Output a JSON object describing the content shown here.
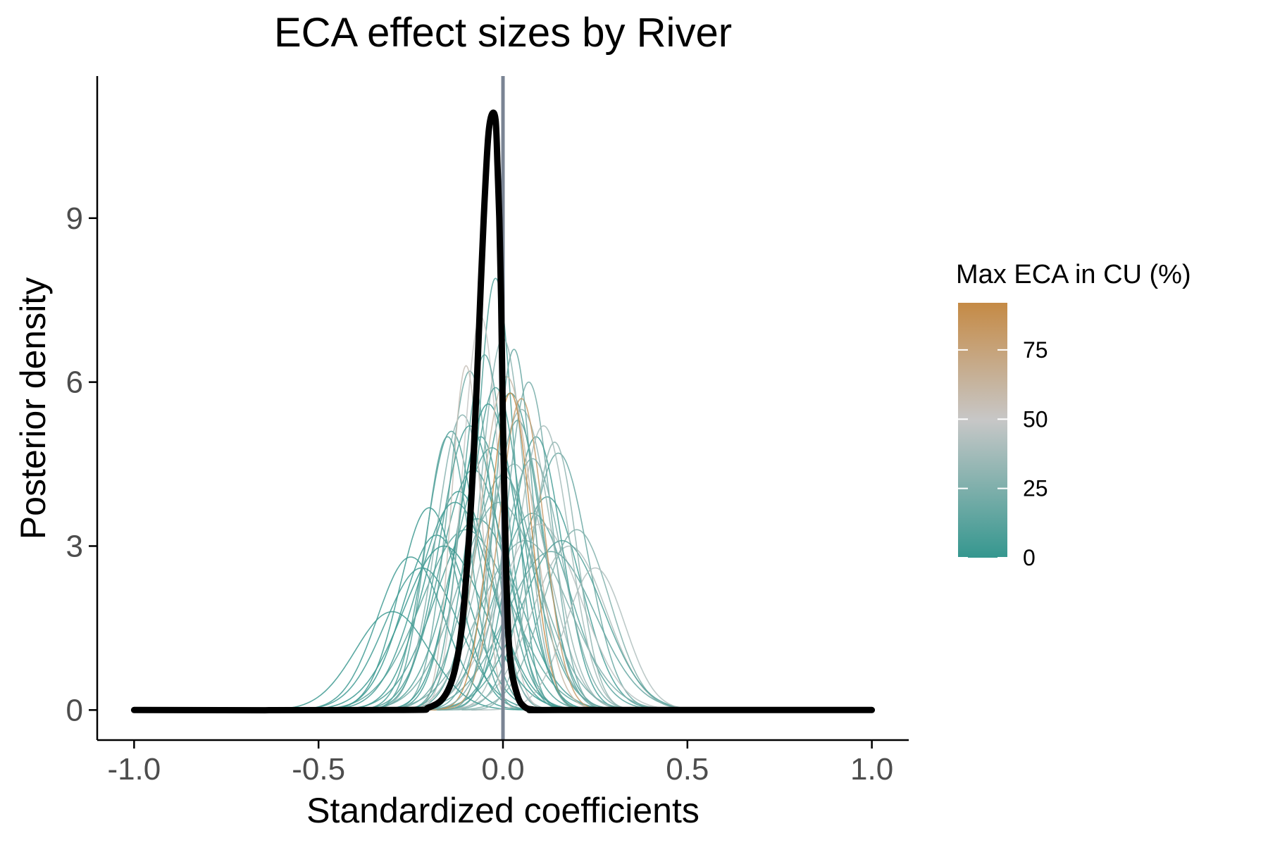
{
  "chart_data": {
    "type": "line",
    "title": "ECA effect sizes by River",
    "xlabel": "Standardized coefficients",
    "ylabel": "Posterior density",
    "xlim": [
      -1.1,
      1.1
    ],
    "ylim": [
      -0.55,
      11.6
    ],
    "x_ticks": [
      -1.0,
      -0.5,
      0.0,
      0.5,
      1.0
    ],
    "x_tick_labels": [
      "-1.0",
      "-0.5",
      "0.0",
      "0.5",
      "1.0"
    ],
    "y_ticks": [
      0,
      3,
      6,
      9
    ],
    "y_tick_labels": [
      "0",
      "3",
      "6",
      "9"
    ],
    "grid": false,
    "reference_line": {
      "x": 0,
      "color": "#7a8494"
    },
    "legend": {
      "title": "Max ECA in CU (%)",
      "placement": "right",
      "type": "colorbar",
      "range": [
        0,
        92
      ],
      "ticks": [
        0,
        25,
        50,
        75
      ],
      "tick_labels": [
        "0",
        "25",
        "50",
        "75"
      ],
      "colors": [
        "#35978f",
        "#c7c7c7",
        "#c58a45"
      ]
    },
    "overall_series": {
      "name": "Overall",
      "color": "#000000",
      "x": [
        -1.0,
        -0.3,
        -0.2,
        -0.15,
        -0.12,
        -0.1,
        -0.08,
        -0.06,
        -0.05,
        -0.04,
        -0.03,
        -0.02,
        -0.015,
        -0.01,
        -0.005,
        0.0,
        0.01,
        0.02,
        0.04,
        0.06,
        0.08,
        0.1,
        0.15,
        1.0
      ],
      "y": [
        0,
        0,
        0.05,
        0.35,
        1.1,
        2.4,
        4.6,
        7.8,
        9.3,
        10.5,
        10.9,
        10.8,
        10.0,
        9.0,
        7.5,
        5.2,
        2.2,
        0.9,
        0.25,
        0.05,
        0.01,
        0,
        0,
        0
      ]
    },
    "river_series": [
      {
        "max_eca": 5,
        "mean": -0.06,
        "sd": 0.07,
        "peak": 5.0
      },
      {
        "max_eca": 8,
        "mean": 0.02,
        "sd": 0.08,
        "peak": 5.8
      },
      {
        "max_eca": 3,
        "mean": -0.12,
        "sd": 0.09,
        "peak": 4.0
      },
      {
        "max_eca": 12,
        "mean": 0.08,
        "sd": 0.1,
        "peak": 3.6
      },
      {
        "max_eca": 2,
        "mean": -0.18,
        "sd": 0.09,
        "peak": 3.2
      },
      {
        "max_eca": 15,
        "mean": 0.04,
        "sd": 0.07,
        "peak": 5.3
      },
      {
        "max_eca": 20,
        "mean": -0.09,
        "sd": 0.06,
        "peak": 6.2
      },
      {
        "max_eca": 6,
        "mean": 0.12,
        "sd": 0.09,
        "peak": 3.9
      },
      {
        "max_eca": 10,
        "mean": -0.02,
        "sd": 0.05,
        "peak": 7.9
      },
      {
        "max_eca": 25,
        "mean": 0.06,
        "sd": 0.12,
        "peak": 3.1
      },
      {
        "max_eca": 4,
        "mean": -0.22,
        "sd": 0.1,
        "peak": 2.6
      },
      {
        "max_eca": 30,
        "mean": 0.0,
        "sd": 0.06,
        "peak": 6.8
      },
      {
        "max_eca": 7,
        "mean": -0.07,
        "sd": 0.11,
        "peak": 3.5
      },
      {
        "max_eca": 18,
        "mean": 0.15,
        "sd": 0.08,
        "peak": 4.7
      },
      {
        "max_eca": 9,
        "mean": -0.14,
        "sd": 0.07,
        "peak": 5.1
      },
      {
        "max_eca": 35,
        "mean": 0.03,
        "sd": 0.09,
        "peak": 4.5
      },
      {
        "max_eca": 1,
        "mean": -0.04,
        "sd": 0.08,
        "peak": 5.6
      },
      {
        "max_eca": 45,
        "mean": 0.1,
        "sd": 0.11,
        "peak": 3.4
      },
      {
        "max_eca": 13,
        "mean": -0.1,
        "sd": 0.12,
        "peak": 3.3
      },
      {
        "max_eca": 22,
        "mean": 0.07,
        "sd": 0.06,
        "peak": 6.0
      },
      {
        "max_eca": 3,
        "mean": -0.2,
        "sd": 0.08,
        "peak": 3.7
      },
      {
        "max_eca": 40,
        "mean": 0.18,
        "sd": 0.1,
        "peak": 3.0
      },
      {
        "max_eca": 11,
        "mean": -0.03,
        "sd": 0.1,
        "peak": 4.8
      },
      {
        "max_eca": 28,
        "mean": -0.11,
        "sd": 0.07,
        "peak": 5.4
      },
      {
        "max_eca": 6,
        "mean": 0.09,
        "sd": 0.07,
        "peak": 5.0
      },
      {
        "max_eca": 50,
        "mean": -0.06,
        "sd": 0.05,
        "peak": 7.2
      },
      {
        "max_eca": 16,
        "mean": 0.13,
        "sd": 0.12,
        "peak": 2.9
      },
      {
        "max_eca": 2,
        "mean": -0.16,
        "sd": 0.11,
        "peak": 3.0
      },
      {
        "max_eca": 33,
        "mean": 0.05,
        "sd": 0.08,
        "peak": 5.5
      },
      {
        "max_eca": 8,
        "mean": -0.08,
        "sd": 0.09,
        "peak": 4.4
      },
      {
        "max_eca": 55,
        "mean": -0.1,
        "sd": 0.04,
        "peak": 6.3
      },
      {
        "max_eca": 19,
        "mean": 0.0,
        "sd": 0.09,
        "peak": 4.3
      },
      {
        "max_eca": 4,
        "mean": -0.25,
        "sd": 0.09,
        "peak": 2.8
      },
      {
        "max_eca": 26,
        "mean": 0.2,
        "sd": 0.09,
        "peak": 3.3
      },
      {
        "max_eca": 14,
        "mean": -0.05,
        "sd": 0.06,
        "peak": 6.5
      },
      {
        "max_eca": 38,
        "mean": 0.11,
        "sd": 0.07,
        "peak": 5.2
      },
      {
        "max_eca": 5,
        "mean": -0.13,
        "sd": 0.1,
        "peak": 3.8
      },
      {
        "max_eca": 60,
        "mean": 0.01,
        "sd": 0.07,
        "peak": 6.1
      },
      {
        "max_eca": 21,
        "mean": -0.01,
        "sd": 0.11,
        "peak": 3.8
      },
      {
        "max_eca": 10,
        "mean": 0.16,
        "sd": 0.11,
        "peak": 3.1
      },
      {
        "max_eca": 90,
        "mean": 0.02,
        "sd": 0.055,
        "peak": 5.8
      },
      {
        "max_eca": 80,
        "mean": 0.05,
        "sd": 0.06,
        "peak": 5.7
      },
      {
        "max_eca": 7,
        "mean": -0.09,
        "sd": 0.08,
        "peak": 5.2
      },
      {
        "max_eca": 24,
        "mean": 0.08,
        "sd": 0.08,
        "peak": 4.6
      },
      {
        "max_eca": 3,
        "mean": -0.3,
        "sd": 0.1,
        "peak": 1.8
      },
      {
        "max_eca": 42,
        "mean": 0.25,
        "sd": 0.08,
        "peak": 2.6
      },
      {
        "max_eca": 12,
        "mean": -0.15,
        "sd": 0.06,
        "peak": 5.0
      },
      {
        "max_eca": 17,
        "mean": 0.03,
        "sd": 0.05,
        "peak": 6.6
      },
      {
        "max_eca": 9,
        "mean": -0.02,
        "sd": 0.07,
        "peak": 5.9
      },
      {
        "max_eca": 31,
        "mean": 0.14,
        "sd": 0.06,
        "peak": 4.9
      }
    ]
  }
}
